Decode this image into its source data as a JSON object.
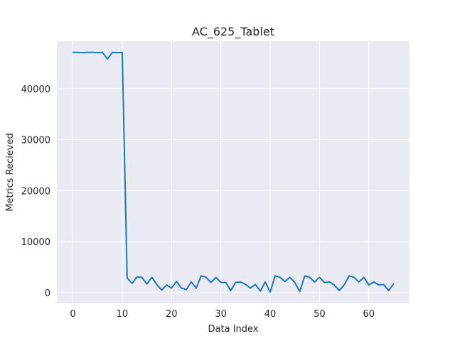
{
  "chart_data": {
    "type": "line",
    "title": "AC_625_Tablet",
    "xlabel": "Data Index",
    "ylabel": "Metrics Recieved",
    "xlim": [
      -3.25,
      68.25
    ],
    "ylim": [
      -2100,
      49300
    ],
    "xticks": [
      0,
      10,
      20,
      30,
      40,
      50,
      60
    ],
    "yticks": [
      0,
      10000,
      20000,
      30000,
      40000
    ],
    "grid": true,
    "background": "#eaeaf2",
    "line_color": "#1f77b4",
    "series": [
      {
        "x": [
          0,
          1,
          2,
          3,
          4,
          5,
          6,
          7,
          8,
          9,
          10,
          11,
          12,
          13,
          14,
          15,
          16,
          17,
          18,
          19,
          20,
          21,
          22,
          23,
          24,
          25,
          26,
          27,
          28,
          29,
          30,
          31,
          32,
          33,
          34,
          35,
          36,
          37,
          38,
          39,
          40,
          41,
          42,
          43,
          44,
          45,
          46,
          47,
          48,
          49,
          50,
          51,
          52,
          53,
          54,
          55,
          56,
          57,
          58,
          59,
          60,
          61,
          62,
          63,
          64,
          65
        ],
        "values": [
          47100,
          47100,
          47050,
          47100,
          47100,
          47050,
          47100,
          45800,
          47100,
          47050,
          47100,
          2900,
          1800,
          3100,
          3000,
          1700,
          3000,
          1600,
          500,
          1500,
          900,
          2200,
          900,
          600,
          2100,
          900,
          3300,
          3000,
          2000,
          3000,
          2000,
          2000,
          400,
          2000,
          2100,
          1600,
          900,
          1600,
          300,
          2100,
          100,
          3300,
          3000,
          2200,
          3000,
          2000,
          200,
          3300,
          3000,
          2100,
          3000,
          2000,
          2100,
          1500,
          400,
          1500,
          3300,
          3000,
          2100,
          3000,
          1500,
          2100,
          1500,
          1600,
          400,
          1700
        ]
      }
    ]
  }
}
